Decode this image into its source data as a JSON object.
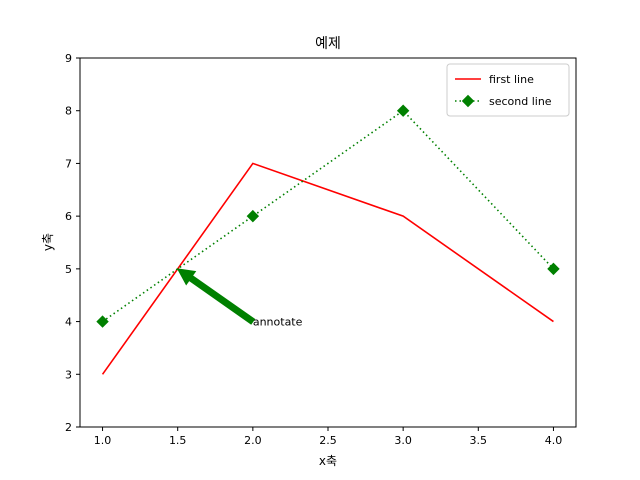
{
  "chart_data": {
    "type": "line",
    "title": "예제",
    "xlabel": "x축",
    "ylabel": "y축",
    "xlim": [
      0.85,
      4.15
    ],
    "ylim": [
      2,
      9
    ],
    "x_ticks": [
      1.0,
      1.5,
      2.0,
      2.5,
      3.0,
      3.5,
      4.0
    ],
    "x_tick_labels": [
      "1.0",
      "1.5",
      "2.0",
      "2.5",
      "3.0",
      "3.5",
      "4.0"
    ],
    "y_ticks": [
      2,
      3,
      4,
      5,
      6,
      7,
      8,
      9
    ],
    "y_tick_labels": [
      "2",
      "3",
      "4",
      "5",
      "6",
      "7",
      "8",
      "9"
    ],
    "grid": false,
    "legend_position": "top-right",
    "series": [
      {
        "name": "first line",
        "x": [
          1,
          2,
          3,
          4
        ],
        "values": [
          3,
          7,
          6,
          4
        ],
        "color": "#ff0000",
        "line_style": "solid",
        "marker": "none"
      },
      {
        "name": "second line",
        "x": [
          1,
          2,
          3,
          4
        ],
        "values": [
          4,
          6,
          8,
          5
        ],
        "color": "#008000",
        "line_style": "dotted",
        "marker": "diamond"
      }
    ],
    "annotations": [
      {
        "text": "annotate",
        "xy": [
          1.5,
          5
        ],
        "xytext": [
          2,
          4
        ],
        "arrow_color": "#008000"
      }
    ]
  }
}
